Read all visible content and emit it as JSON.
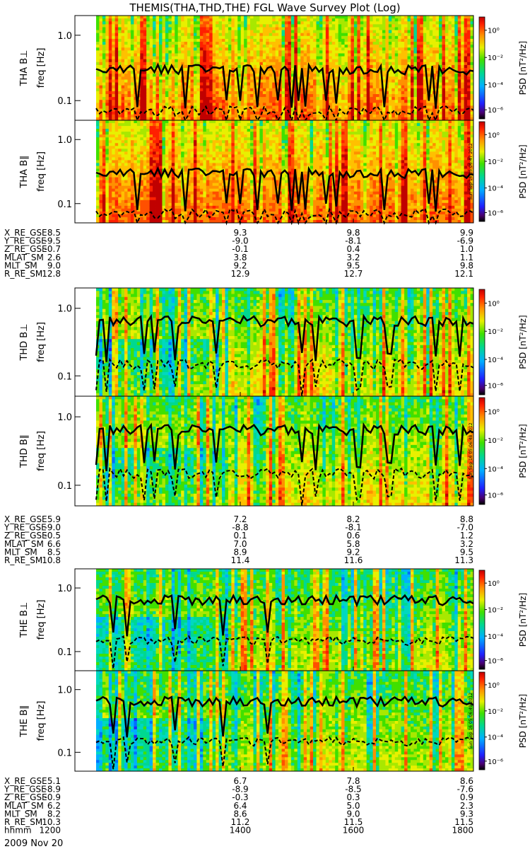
{
  "title": "THEMIS(THA,THD,THE) FGL Wave Survey Plot (Log)",
  "colorbar": {
    "label": "PSD [nT²/Hz]",
    "ticks": [
      "10⁰",
      "10⁻²",
      "10⁻⁴",
      "10⁻⁶"
    ]
  },
  "stamps": [
    "Sun Sep 16 05:06:47 2012",
    "Sun Sep 16 05:06:48 2012",
    "Sun Sep 16 05:06:49 2012"
  ],
  "freq_ticks": [
    "1.0",
    "0.1"
  ],
  "panels": [
    {
      "label": "THA B⊥",
      "ylabel": "freq [Hz]",
      "probe": "tha",
      "component": "perp"
    },
    {
      "label": "THA B∥",
      "ylabel": "freq [Hz]",
      "probe": "tha",
      "component": "par"
    },
    {
      "label": "THD B⊥",
      "ylabel": "freq [Hz]",
      "probe": "thd",
      "component": "perp"
    },
    {
      "label": "THD B∥",
      "ylabel": "freq [Hz]",
      "probe": "thd",
      "component": "par"
    },
    {
      "label": "THE B⊥",
      "ylabel": "freq [Hz]",
      "probe": "the",
      "component": "perp"
    },
    {
      "label": "THE B∥",
      "ylabel": "freq [Hz]",
      "probe": "the",
      "component": "par"
    }
  ],
  "ephemeris": [
    {
      "rows": [
        {
          "name": "X_RE_GSE",
          "values": [
            "8.5",
            "9.3",
            "9.8",
            "9.9"
          ]
        },
        {
          "name": "Y_RE_GSE",
          "values": [
            "-9.5",
            "-9.0",
            "-8.1",
            "-6.9"
          ]
        },
        {
          "name": "Z_RE_GSE",
          "values": [
            "-0.7",
            "-0.1",
            "0.4",
            "1.0"
          ]
        },
        {
          "name": "MLAT_SM",
          "values": [
            "2.6",
            "3.8",
            "3.2",
            "1.1"
          ]
        },
        {
          "name": "MLT_SM",
          "values": [
            "9.0",
            "9.2",
            "9.5",
            "9.8"
          ]
        },
        {
          "name": "R_RE_SM",
          "values": [
            "12.8",
            "12.9",
            "12.7",
            "12.1"
          ]
        }
      ]
    },
    {
      "rows": [
        {
          "name": "X_RE_GSE",
          "values": [
            "5.9",
            "7.2",
            "8.2",
            "8.8"
          ]
        },
        {
          "name": "Y_RE_GSE",
          "values": [
            "-9.0",
            "-8.8",
            "-8.1",
            "-7.0"
          ]
        },
        {
          "name": "Z_RE_GSE",
          "values": [
            "-0.5",
            "0.1",
            "0.6",
            "1.2"
          ]
        },
        {
          "name": "MLAT_SM",
          "values": [
            "6.6",
            "7.0",
            "5.8",
            "3.2"
          ]
        },
        {
          "name": "MLT_SM",
          "values": [
            "8.5",
            "8.9",
            "9.2",
            "9.5"
          ]
        },
        {
          "name": "R_RE_SM",
          "values": [
            "10.8",
            "11.4",
            "11.6",
            "11.3"
          ]
        }
      ]
    },
    {
      "rows": [
        {
          "name": "X_RE_GSE",
          "values": [
            "5.1",
            "6.7",
            "7.8",
            "8.6"
          ]
        },
        {
          "name": "Y_RE_GSE",
          "values": [
            "-8.9",
            "-8.9",
            "-8.5",
            "-7.6"
          ]
        },
        {
          "name": "Z_RE_GSE",
          "values": [
            "-0.9",
            "-0.3",
            "0.3",
            "0.9"
          ]
        },
        {
          "name": "MLAT_SM",
          "values": [
            "6.2",
            "6.4",
            "5.0",
            "2.3"
          ]
        },
        {
          "name": "MLT_SM",
          "values": [
            "8.2",
            "8.6",
            "9.0",
            "9.3"
          ]
        },
        {
          "name": "R_RE_SM",
          "values": [
            "10.3",
            "11.2",
            "11.5",
            "11.5"
          ]
        },
        {
          "name": "hhmm",
          "values": [
            "1200",
            "1400",
            "1600",
            "1800"
          ]
        }
      ]
    }
  ],
  "date": "2009 Nov 20",
  "chart_data": {
    "type": "heatmap",
    "title": "THEMIS(THA,THD,THE) FGL Wave Survey Plot (Log)",
    "xlabel": "hhmm",
    "ylabel": "freq [Hz]",
    "x_ticks": [
      "1200",
      "1400",
      "1600",
      "1800"
    ],
    "y_scale": "log",
    "y_ticks": [
      1.0,
      0.1
    ],
    "ylim": [
      0.05,
      2.0
    ],
    "color_scale": "log",
    "color_ticks": [
      "10⁰",
      "10⁻²",
      "10⁻⁴",
      "10⁻⁶"
    ],
    "overlays": [
      "solid line (upper)",
      "dashed line (lower)"
    ],
    "panels": [
      "THA B⊥",
      "THA B∥",
      "THD B⊥",
      "THD B∥",
      "THE B⊥",
      "THE B∥"
    ]
  }
}
